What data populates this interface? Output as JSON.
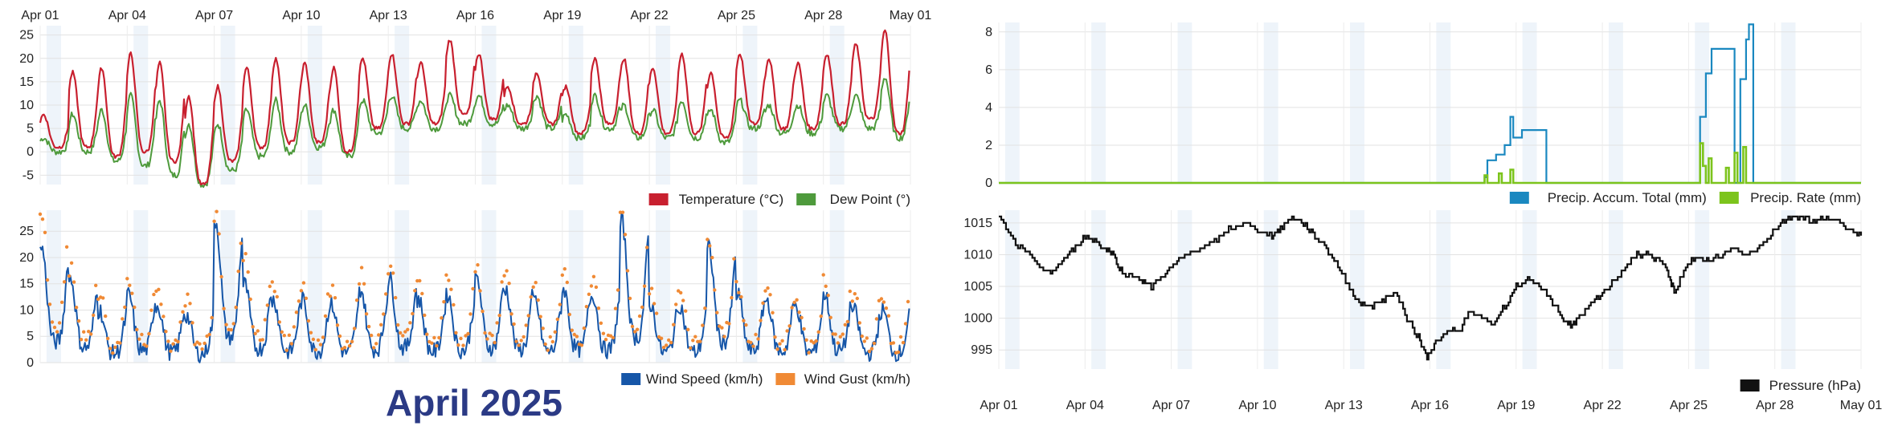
{
  "page_title": "April 2025",
  "date_ticks": [
    "Apr 01",
    "Apr 04",
    "Apr 07",
    "Apr 10",
    "Apr 13",
    "Apr 16",
    "Apr 19",
    "Apr 22",
    "Apr 25",
    "Apr 28",
    "May 01"
  ],
  "chart_data": [
    {
      "id": "temperature",
      "type": "line",
      "x_start": "Apr 01",
      "x_end": "May 01",
      "days": 30,
      "ylim": [
        -7,
        27
      ],
      "yticks": [
        -5,
        0,
        5,
        10,
        15,
        20,
        25
      ],
      "xlabel": "",
      "ylabel": "",
      "grid": true,
      "legend": "bottom-right",
      "daily_max": [
        8,
        17,
        18,
        21,
        19,
        12,
        14,
        18,
        20,
        19,
        18,
        20,
        21,
        19,
        24,
        21,
        14,
        17,
        14,
        20,
        20,
        18,
        21,
        17,
        21,
        20,
        19,
        21,
        23,
        26
      ],
      "daily_min": [
        1,
        1,
        -1,
        0,
        -2,
        -7,
        -2,
        1,
        2,
        2,
        0,
        5,
        6,
        6,
        8,
        7,
        6,
        6,
        4,
        6,
        4,
        4,
        4,
        3,
        6,
        5,
        5,
        6,
        7,
        4
      ],
      "dew_max": [
        3,
        8,
        9,
        12,
        11,
        6,
        6,
        9,
        11,
        10,
        9,
        11,
        12,
        11,
        12,
        12,
        10,
        12,
        8,
        12,
        10,
        9,
        11,
        9,
        11,
        10,
        10,
        12,
        12,
        16
      ],
      "dew_min": [
        0,
        0,
        -2,
        -3,
        -5,
        -7,
        -4,
        -1,
        0,
        1,
        -1,
        4,
        5,
        5,
        6,
        6,
        5,
        5,
        3,
        5,
        3,
        3,
        3,
        2,
        5,
        4,
        4,
        5,
        5,
        3
      ],
      "series": [
        {
          "name": "Temperature (°C)",
          "color": "#c8202f"
        },
        {
          "name": "Dew Point (°)",
          "color": "#4e9a3c"
        }
      ]
    },
    {
      "id": "wind",
      "type": "line",
      "x_start": "Apr 01",
      "x_end": "May 01",
      "days": 30,
      "ylim": [
        0,
        29
      ],
      "yticks": [
        0,
        5,
        10,
        15,
        20,
        25
      ],
      "grid": true,
      "legend": "bottom-right",
      "daily_peak": [
        22,
        16,
        10,
        13,
        11,
        9,
        27,
        15,
        12,
        12,
        11,
        14,
        16,
        12,
        13,
        16,
        14,
        12,
        14,
        13,
        27,
        11,
        11,
        22,
        13,
        12,
        11,
        13,
        10,
        10
      ],
      "gust_peak": [
        28,
        18,
        13,
        16,
        14,
        12,
        29,
        20,
        15,
        15,
        14,
        17,
        19,
        16,
        16,
        18,
        17,
        15,
        17,
        16,
        29,
        14,
        14,
        24,
        15,
        14,
        13,
        16,
        13,
        13
      ],
      "series": [
        {
          "name": "Wind Speed (km/h)",
          "color": "#1656a8"
        },
        {
          "name": "Wind Gust (km/h)",
          "color": "#f08a35"
        }
      ]
    },
    {
      "id": "precipitation",
      "type": "line",
      "x_start": "Apr 01",
      "x_end": "May 01",
      "days": 30,
      "ylim": [
        0,
        8.5
      ],
      "yticks": [
        0,
        2,
        4,
        6,
        8
      ],
      "grid": true,
      "legend": "bottom-right",
      "accum_points": [
        [
          0,
          0
        ],
        [
          16.7,
          0
        ],
        [
          16.9,
          0.3
        ],
        [
          17.0,
          1.2
        ],
        [
          17.3,
          1.5
        ],
        [
          17.6,
          2.0
        ],
        [
          17.8,
          3.5
        ],
        [
          17.9,
          2.4
        ],
        [
          18.2,
          2.8
        ],
        [
          19.0,
          2.8
        ],
        [
          19.05,
          0
        ],
        [
          24.3,
          0
        ],
        [
          24.4,
          3.5
        ],
        [
          24.6,
          5.8
        ],
        [
          24.8,
          7.1
        ],
        [
          25.5,
          7.1
        ],
        [
          25.6,
          0
        ],
        [
          25.8,
          5.5
        ],
        [
          26.0,
          7.6
        ],
        [
          26.1,
          8.4
        ],
        [
          26.2,
          8.4
        ],
        [
          26.25,
          0
        ],
        [
          30,
          0
        ]
      ],
      "rate_points": [
        [
          0,
          0
        ],
        [
          16.8,
          0
        ],
        [
          16.9,
          0.4
        ],
        [
          17.0,
          0
        ],
        [
          17.4,
          0.5
        ],
        [
          17.5,
          0
        ],
        [
          17.8,
          0.7
        ],
        [
          17.9,
          0
        ],
        [
          24.3,
          0
        ],
        [
          24.4,
          2.1
        ],
        [
          24.5,
          0.9
        ],
        [
          24.6,
          0
        ],
        [
          24.7,
          1.3
        ],
        [
          24.8,
          0
        ],
        [
          25.3,
          0.8
        ],
        [
          25.4,
          0
        ],
        [
          25.6,
          1.6
        ],
        [
          25.7,
          0
        ],
        [
          25.9,
          1.9
        ],
        [
          26.0,
          0
        ],
        [
          30,
          0
        ]
      ],
      "series": [
        {
          "name": "Precip. Accum. Total (mm)",
          "color": "#1a88c0"
        },
        {
          "name": "Precip. Rate (mm)",
          "color": "#7cc41c"
        }
      ]
    },
    {
      "id": "pressure",
      "type": "line",
      "x_start": "Apr 01",
      "x_end": "May 01",
      "days": 30,
      "ylim": [
        992,
        1017
      ],
      "yticks": [
        995,
        1000,
        1005,
        1010,
        1015
      ],
      "grid": true,
      "legend": "bottom-right",
      "points": [
        [
          0,
          1016
        ],
        [
          0.5,
          1012
        ],
        [
          1.0,
          1010
        ],
        [
          1.5,
          1008
        ],
        [
          1.8,
          1007
        ],
        [
          2.2,
          1009
        ],
        [
          2.6,
          1011
        ],
        [
          3.0,
          1013
        ],
        [
          3.4,
          1012
        ],
        [
          3.7,
          1011
        ],
        [
          4.0,
          1010
        ],
        [
          4.3,
          1007
        ],
        [
          5.0,
          1006
        ],
        [
          5.3,
          1005
        ],
        [
          5.8,
          1007
        ],
        [
          6.2,
          1009
        ],
        [
          6.6,
          1010
        ],
        [
          7.0,
          1011
        ],
        [
          7.5,
          1012
        ],
        [
          8.0,
          1014
        ],
        [
          8.5,
          1015
        ],
        [
          9.0,
          1014
        ],
        [
          9.5,
          1013
        ],
        [
          9.8,
          1014
        ],
        [
          10.2,
          1016
        ],
        [
          10.6,
          1015
        ],
        [
          11.0,
          1013
        ],
        [
          11.4,
          1011
        ],
        [
          11.8,
          1008
        ],
        [
          12.2,
          1005
        ],
        [
          12.6,
          1002
        ],
        [
          13.0,
          1002
        ],
        [
          13.4,
          1003
        ],
        [
          13.8,
          1004
        ],
        [
          14.2,
          1000
        ],
        [
          14.6,
          997
        ],
        [
          14.9,
          994
        ],
        [
          15.2,
          996
        ],
        [
          15.6,
          998
        ],
        [
          16.0,
          998
        ],
        [
          16.4,
          1001
        ],
        [
          16.8,
          1000
        ],
        [
          17.2,
          999
        ],
        [
          17.6,
          1002
        ],
        [
          18.0,
          1005
        ],
        [
          18.4,
          1006
        ],
        [
          18.8,
          1005
        ],
        [
          19.2,
          1003
        ],
        [
          19.6,
          1000
        ],
        [
          19.9,
          999
        ],
        [
          20.2,
          1000
        ],
        [
          20.6,
          1002
        ],
        [
          21.0,
          1004
        ],
        [
          21.4,
          1006
        ],
        [
          21.8,
          1008
        ],
        [
          22.2,
          1010
        ],
        [
          22.6,
          1010
        ],
        [
          23.0,
          1009
        ],
        [
          23.3,
          1007
        ],
        [
          23.5,
          1004
        ],
        [
          23.9,
          1008
        ],
        [
          24.3,
          1010
        ],
        [
          24.7,
          1009
        ],
        [
          25.2,
          1010
        ],
        [
          25.6,
          1011
        ],
        [
          26.0,
          1010
        ],
        [
          26.4,
          1011
        ],
        [
          26.8,
          1013
        ],
        [
          27.2,
          1015
        ],
        [
          27.6,
          1016
        ],
        [
          28.0,
          1016
        ],
        [
          28.4,
          1015
        ],
        [
          28.8,
          1016
        ],
        [
          29.2,
          1015
        ],
        [
          29.6,
          1014
        ],
        [
          30.0,
          1013
        ]
      ],
      "series": [
        {
          "name": "Pressure (hPa)",
          "color": "#111111"
        }
      ]
    }
  ]
}
